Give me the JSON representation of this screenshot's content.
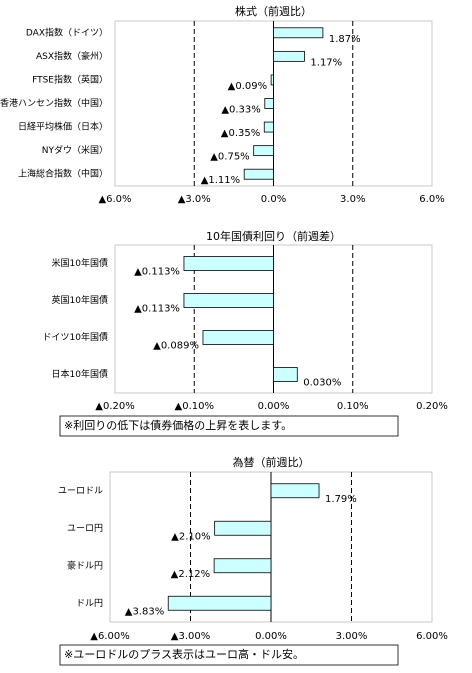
{
  "chart_data": [
    {
      "type": "bar",
      "orientation": "horizontal",
      "title": "株式（前週比）",
      "categories": [
        "DAX指数（ドイツ）",
        "ASX指数（豪州）",
        "FTSE指数（英国）",
        "香港ハンセン指数（中国）",
        "日経平均株価（日本）",
        "NYダウ（米国）",
        "上海総合指数（中国）"
      ],
      "values": [
        1.87,
        1.17,
        -0.09,
        -0.33,
        -0.35,
        -0.75,
        -1.11
      ],
      "value_labels": [
        "1.87%",
        "1.17%",
        "▲0.09%",
        "▲0.33%",
        "▲0.35%",
        "▲0.75%",
        "▲1.11%"
      ],
      "color": "#ccffff",
      "negative_color": "#ff0000",
      "xlim": [
        -6,
        6
      ],
      "xticks": [
        {
          "value": -6,
          "label": "▲6.0%"
        },
        {
          "value": -3,
          "label": "▲3.0%"
        },
        {
          "value": 0,
          "label": "0.0%"
        },
        {
          "value": 3,
          "label": "3.0%"
        },
        {
          "value": 6,
          "label": "6.0%"
        }
      ],
      "grid": true
    },
    {
      "type": "bar",
      "orientation": "horizontal",
      "title": "10年国債利回り（前週差）",
      "categories": [
        "米国10年国債",
        "英国10年国債",
        "ドイツ10年国債",
        "日本10年国債"
      ],
      "values": [
        -0.113,
        -0.113,
        -0.089,
        0.03
      ],
      "value_labels": [
        "▲0.113%",
        "▲0.113%",
        "▲0.089%",
        "0.030%"
      ],
      "color": "#ccffff",
      "negative_color": "#ff0000",
      "xlim": [
        -0.2,
        0.2
      ],
      "xticks": [
        {
          "value": -0.2,
          "label": "▲0.20%"
        },
        {
          "value": -0.1,
          "label": "▲0.10%"
        },
        {
          "value": 0,
          "label": "0.00%"
        },
        {
          "value": 0.1,
          "label": "0.10%"
        },
        {
          "value": 0.2,
          "label": "0.20%"
        }
      ],
      "grid": true,
      "note": "※利回りの低下は債券価格の上昇を表します。"
    },
    {
      "type": "bar",
      "orientation": "horizontal",
      "title": "為替（前週比）",
      "categories": [
        "ユーロドル",
        "ユーロ円",
        "豪ドル円",
        "ドル円"
      ],
      "values": [
        1.79,
        -2.1,
        -2.12,
        -3.83
      ],
      "value_labels": [
        "1.79%",
        "▲2.10%",
        "▲2.12%",
        "▲3.83%"
      ],
      "color": "#ccffff",
      "negative_color": "#ff0000",
      "xlim": [
        -6,
        6
      ],
      "xticks": [
        {
          "value": -6,
          "label": "▲6.00%"
        },
        {
          "value": -3,
          "label": "▲3.00%"
        },
        {
          "value": 0,
          "label": "0.00%"
        },
        {
          "value": 3,
          "label": "3.00%"
        },
        {
          "value": 6,
          "label": "6.00%"
        }
      ],
      "grid": true,
      "note": "※ユーロドルのプラス表示はユーロ高・ドル安。"
    }
  ]
}
